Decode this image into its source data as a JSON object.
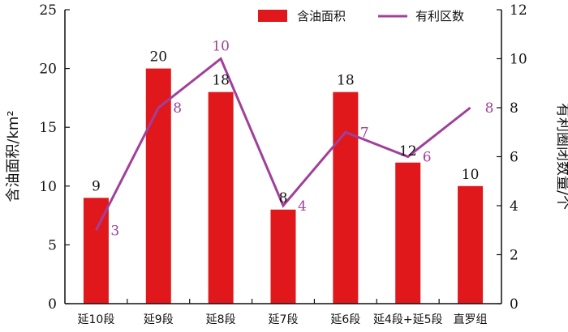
{
  "chart_data": {
    "type": "bar",
    "categories": [
      "延10段",
      "延9段",
      "延8段",
      "延7段",
      "延6段",
      "延4段+延5段",
      "直罗组"
    ],
    "series": [
      {
        "name": "含油面积",
        "type": "bar",
        "axis": "left",
        "color": "#e0181c",
        "values": [
          9,
          20,
          18,
          8,
          18,
          12,
          10
        ]
      },
      {
        "name": "有利区数",
        "type": "line",
        "axis": "right",
        "color": "#a0409a",
        "values": [
          3,
          8,
          10,
          4,
          7,
          6,
          8
        ]
      }
    ],
    "y_left": {
      "label": "含油面积/km²",
      "range": [
        0,
        25
      ],
      "ticks": [
        "0",
        "5",
        "10",
        "15",
        "20",
        "25"
      ]
    },
    "y_right": {
      "label": "有利圈闭数量/个",
      "range": [
        0,
        12
      ],
      "ticks": [
        "0",
        "2",
        "4",
        "6",
        "8",
        "10",
        "12"
      ]
    },
    "legend_position": "top-right",
    "grid": false
  }
}
